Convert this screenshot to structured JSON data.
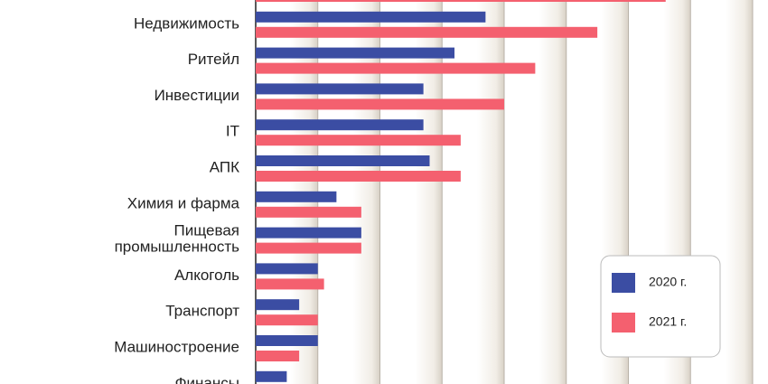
{
  "chart_data": {
    "type": "bar",
    "orientation": "horizontal",
    "categories": [
      null,
      "Недвижимость",
      "Ритейл",
      "Инвестиции",
      "IT",
      "АПК",
      "Химия и фарма",
      "Пищевая промышленность",
      "Алкоголь",
      "Транспорт",
      "Машиностроение",
      "Финансы"
    ],
    "series": [
      {
        "name": "2020 г.",
        "color": "#3b4da3",
        "values": [
          null,
          3.7,
          3.2,
          2.7,
          2.7,
          2.8,
          1.3,
          1.7,
          1.0,
          0.7,
          1.0,
          0.5
        ]
      },
      {
        "name": "2021 г.",
        "color": "#f4606f",
        "values": [
          6.6,
          5.5,
          4.5,
          4.0,
          3.3,
          3.3,
          1.7,
          1.7,
          1.1,
          1.0,
          0.7,
          null
        ]
      }
    ],
    "xlim": [
      0,
      8
    ],
    "xticks": [
      0,
      1,
      2,
      3,
      4,
      5,
      6,
      7,
      8
    ],
    "grid": true,
    "legend": "lower right"
  }
}
